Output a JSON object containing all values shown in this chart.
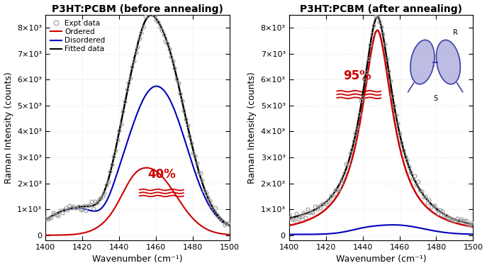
{
  "title_left": "P3HT:PCBM (before annealing)",
  "title_right": "P3HT:PCBM (after annealing)",
  "xlabel": "Wavenumber (cm⁻¹)",
  "ylabel": "Raman Intensity (counts)",
  "xlim": [
    1400,
    1500
  ],
  "ylim": [
    -200,
    8500
  ],
  "yticks": [
    0,
    1000,
    2000,
    3000,
    4000,
    5000,
    6000,
    7000,
    8000
  ],
  "ytick_labels": [
    "0",
    "1×10³",
    "2×10³",
    "3×10³",
    "4×10³",
    "5×10³",
    "6×10³",
    "7×10³",
    "8×10³"
  ],
  "color_ordered": "#cc0000",
  "color_disordered": "#0000bb",
  "color_fitted": "#000000",
  "color_expt": "#888888",
  "percent_left": "40%",
  "percent_right": "95%",
  "background_color": "#ffffff"
}
